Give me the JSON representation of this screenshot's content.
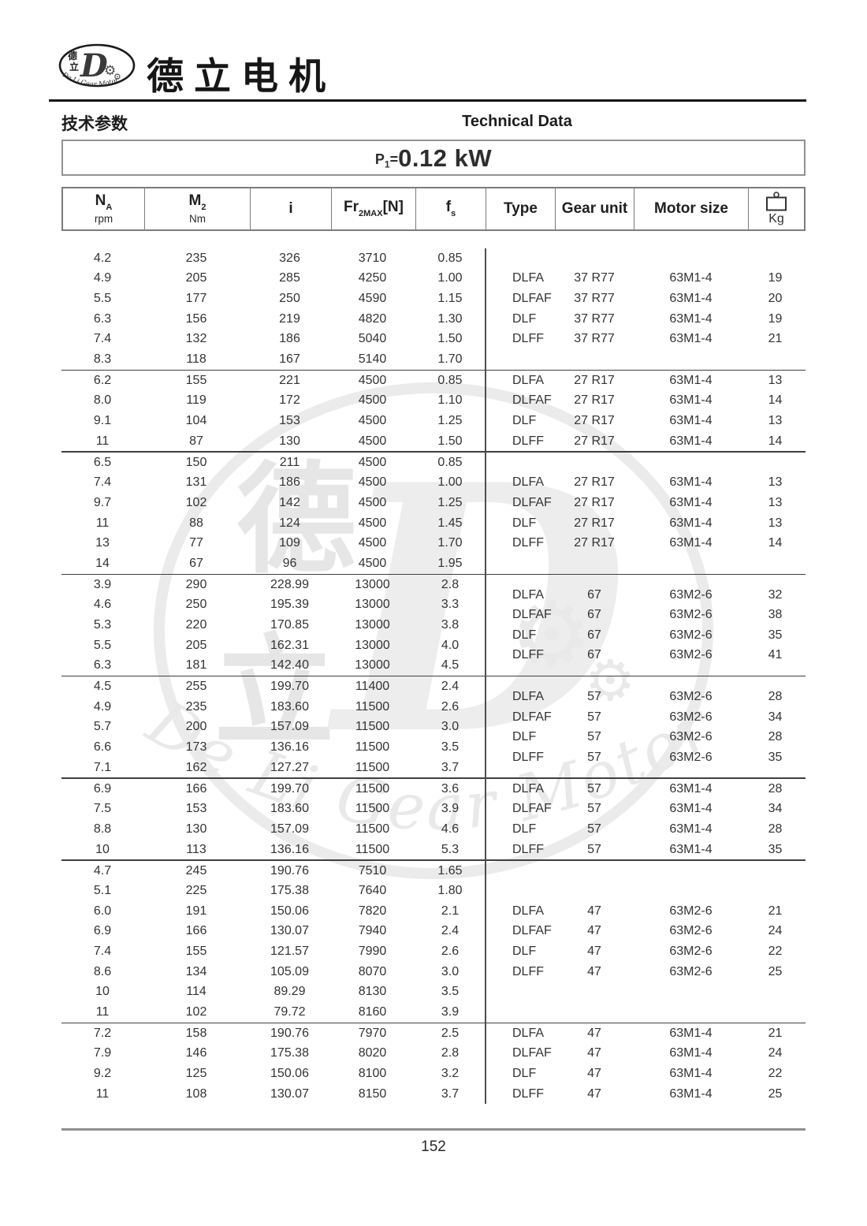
{
  "header": {
    "brand": "德立电机",
    "section_cn": "技术参数",
    "section_en": "Technical Data",
    "logo": {
      "cn_top": "德",
      "cn_bottom": "立",
      "letter": "D",
      "ring_text": "De Li Gear Motor"
    }
  },
  "title": {
    "prefix": "P",
    "sub": "1",
    "equals": "=",
    "value": "0.12 kW"
  },
  "columns": [
    {
      "main": "N",
      "sub": "A",
      "unit": "rpm"
    },
    {
      "main": "M",
      "sub": "2",
      "unit": "Nm"
    },
    {
      "main": "i"
    },
    {
      "main": "Fr",
      "sub": "2MAX",
      "suffix": "[N]"
    },
    {
      "main": "f",
      "sub": "s"
    },
    {
      "main": "Type"
    },
    {
      "main": "Gear unit"
    },
    {
      "main": "Motor size"
    },
    {
      "main": "Kg",
      "icon": "weight-icon"
    }
  ],
  "groups": [
    {
      "left": [
        [
          "4.2",
          "235",
          "326",
          "3710",
          "0.85"
        ],
        [
          "4.9",
          "205",
          "285",
          "4250",
          "1.00"
        ],
        [
          "5.5",
          "177",
          "250",
          "4590",
          "1.15"
        ],
        [
          "6.3",
          "156",
          "219",
          "4820",
          "1.30"
        ],
        [
          "7.4",
          "132",
          "186",
          "5040",
          "1.50"
        ],
        [
          "8.3",
          "118",
          "167",
          "5140",
          "1.70"
        ]
      ],
      "right": [
        [
          "DLFA",
          "37 R77",
          "63M1-4",
          "19"
        ],
        [
          "DLFAF",
          "37 R77",
          "63M1-4",
          "20"
        ],
        [
          "DLF",
          "37 R77",
          "63M1-4",
          "19"
        ],
        [
          "DLFF",
          "37 R77",
          "63M1-4",
          "21"
        ]
      ]
    },
    {
      "left": [
        [
          "6.2",
          "155",
          "221",
          "4500",
          "0.85"
        ],
        [
          "8.0",
          "119",
          "172",
          "4500",
          "1.10"
        ],
        [
          "9.1",
          "104",
          "153",
          "4500",
          "1.25"
        ],
        [
          "11",
          "87",
          "130",
          "4500",
          "1.50"
        ]
      ],
      "right": [
        [
          "DLFA",
          "27 R17",
          "63M1-4",
          "13"
        ],
        [
          "DLFAF",
          "27 R17",
          "63M1-4",
          "14"
        ],
        [
          "DLF",
          "27 R17",
          "63M1-4",
          "13"
        ],
        [
          "DLFF",
          "27 R17",
          "63M1-4",
          "14"
        ]
      ]
    },
    {
      "left": [
        [
          "6.5",
          "150",
          "211",
          "4500",
          "0.85"
        ],
        [
          "7.4",
          "131",
          "186",
          "4500",
          "1.00"
        ],
        [
          "9.7",
          "102",
          "142",
          "4500",
          "1.25"
        ],
        [
          "11",
          "88",
          "124",
          "4500",
          "1.45"
        ],
        [
          "13",
          "77",
          "109",
          "4500",
          "1.70"
        ],
        [
          "14",
          "67",
          "96",
          "4500",
          "1.95"
        ]
      ],
      "right": [
        [
          "DLFA",
          "27 R17",
          "63M1-4",
          "13"
        ],
        [
          "DLFAF",
          "27 R17",
          "63M1-4",
          "13"
        ],
        [
          "DLF",
          "27 R17",
          "63M1-4",
          "13"
        ],
        [
          "DLFF",
          "27 R17",
          "63M1-4",
          "14"
        ]
      ]
    },
    {
      "left": [
        [
          "3.9",
          "290",
          "228.99",
          "13000",
          "2.8"
        ],
        [
          "4.6",
          "250",
          "195.39",
          "13000",
          "3.3"
        ],
        [
          "5.3",
          "220",
          "170.85",
          "13000",
          "3.8"
        ],
        [
          "5.5",
          "205",
          "162.31",
          "13000",
          "4.0"
        ],
        [
          "6.3",
          "181",
          "142.40",
          "13000",
          "4.5"
        ]
      ],
      "right": [
        [
          "DLFA",
          "67",
          "63M2-6",
          "32"
        ],
        [
          "DLFAF",
          "67",
          "63M2-6",
          "38"
        ],
        [
          "DLF",
          "67",
          "63M2-6",
          "35"
        ],
        [
          "DLFF",
          "67",
          "63M2-6",
          "41"
        ]
      ]
    },
    {
      "left": [
        [
          "4.5",
          "255",
          "199.70",
          "11400",
          "2.4"
        ],
        [
          "4.9",
          "235",
          "183.60",
          "11500",
          "2.6"
        ],
        [
          "5.7",
          "200",
          "157.09",
          "11500",
          "3.0"
        ],
        [
          "6.6",
          "173",
          "136.16",
          "11500",
          "3.5"
        ],
        [
          "7.1",
          "162",
          "127.27",
          "11500",
          "3.7"
        ]
      ],
      "right": [
        [
          "DLFA",
          "57",
          "63M2-6",
          "28"
        ],
        [
          "DLFAF",
          "57",
          "63M2-6",
          "34"
        ],
        [
          "DLF",
          "57",
          "63M2-6",
          "28"
        ],
        [
          "DLFF",
          "57",
          "63M2-6",
          "35"
        ]
      ]
    },
    {
      "left": [
        [
          "6.9",
          "166",
          "199.70",
          "11500",
          "3.6"
        ],
        [
          "7.5",
          "153",
          "183.60",
          "11500",
          "3.9"
        ],
        [
          "8.8",
          "130",
          "157.09",
          "11500",
          "4.6"
        ],
        [
          "10",
          "113",
          "136.16",
          "11500",
          "5.3"
        ]
      ],
      "right": [
        [
          "DLFA",
          "57",
          "63M1-4",
          "28"
        ],
        [
          "DLFAF",
          "57",
          "63M1-4",
          "34"
        ],
        [
          "DLF",
          "57",
          "63M1-4",
          "28"
        ],
        [
          "DLFF",
          "57",
          "63M1-4",
          "35"
        ]
      ]
    },
    {
      "left": [
        [
          "4.7",
          "245",
          "190.76",
          "7510",
          "1.65"
        ],
        [
          "5.1",
          "225",
          "175.38",
          "7640",
          "1.80"
        ],
        [
          "6.0",
          "191",
          "150.06",
          "7820",
          "2.1"
        ],
        [
          "6.9",
          "166",
          "130.07",
          "7940",
          "2.4"
        ],
        [
          "7.4",
          "155",
          "121.57",
          "7990",
          "2.6"
        ],
        [
          "8.6",
          "134",
          "105.09",
          "8070",
          "3.0"
        ],
        [
          "10",
          "114",
          "89.29",
          "8130",
          "3.5"
        ],
        [
          "11",
          "102",
          "79.72",
          "8160",
          "3.9"
        ]
      ],
      "right": [
        [
          "DLFA",
          "47",
          "63M2-6",
          "21"
        ],
        [
          "DLFAF",
          "47",
          "63M2-6",
          "24"
        ],
        [
          "DLF",
          "47",
          "63M2-6",
          "22"
        ],
        [
          "DLFF",
          "47",
          "63M2-6",
          "25"
        ]
      ]
    },
    {
      "left": [
        [
          "7.2",
          "158",
          "190.76",
          "7970",
          "2.5"
        ],
        [
          "7.9",
          "146",
          "175.38",
          "8020",
          "2.8"
        ],
        [
          "9.2",
          "125",
          "150.06",
          "8100",
          "3.2"
        ],
        [
          "11",
          "108",
          "130.07",
          "8150",
          "3.7"
        ]
      ],
      "right": [
        [
          "DLFA",
          "47",
          "63M1-4",
          "21"
        ],
        [
          "DLFAF",
          "47",
          "63M1-4",
          "24"
        ],
        [
          "DLF",
          "47",
          "63M1-4",
          "22"
        ],
        [
          "DLFF",
          "47",
          "63M1-4",
          "25"
        ]
      ]
    }
  ],
  "footer": {
    "page_number": "152"
  },
  "watermark": {
    "char_top": "德",
    "char_bottom": "立",
    "letter": "D",
    "script_text": "De Li Gear Motor"
  },
  "colors": {
    "text": "#333333",
    "rule_black": "#151515",
    "border_gray": "#7c7c7c",
    "separator": "#3f3f3f",
    "rule_bottom_gray": "#8f8f8f",
    "watermark_gray": "#e9e9e9"
  }
}
